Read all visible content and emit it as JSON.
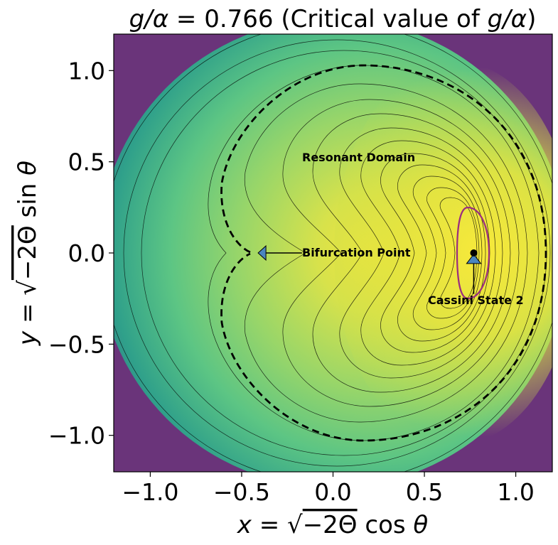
{
  "chart_data": {
    "type": "contour",
    "title": "g/α = 0.766 (Critical value of g/α)",
    "title_prefix": "g/α = ",
    "title_value": "0.766",
    "title_suffix": " (Critical value of g/α)",
    "xlabel": "x = √−2Θ cos θ",
    "ylabel": "y = √−2Θ sin θ",
    "xlim": [
      -1.2,
      1.2
    ],
    "ylim": [
      -1.2,
      1.2
    ],
    "xticks": [
      -1.0,
      -0.5,
      0.0,
      0.5,
      1.0
    ],
    "yticks": [
      -1.0,
      -0.5,
      0.0,
      0.5,
      1.0
    ],
    "xtick_labels": [
      "−1.0",
      "−0.5",
      "0.0",
      "0.5",
      "1.0"
    ],
    "ytick_labels": [
      "−1.0",
      "−0.5",
      "0.0",
      "0.5",
      "1.0"
    ],
    "colormap": "viridis",
    "colors": {
      "background_outer": "#6a347a",
      "purple": "#48196b",
      "teal": "#3fae86",
      "green": "#7fd07c",
      "yellow": "#f2e83f",
      "separatrix": "#000000",
      "cassini_contour": "#9b2d7f",
      "marker_fill": "#4a86c0"
    },
    "separatrix": {
      "style": "dashed",
      "right_extent_x": 1.13,
      "top_extent_y": 1.03,
      "bottom_extent_y": -1.03,
      "cusp_x": -0.47,
      "cusp_y": 0.0
    },
    "points": [
      {
        "name": "Cassini State 2",
        "x": 0.77,
        "y": 0.0
      }
    ],
    "annotations": [
      {
        "text": "Resonant Domain",
        "x": -0.17,
        "y": 0.5
      },
      {
        "text": "Bifurcation Point",
        "x": -0.17,
        "y": 0.0,
        "arrow_to": [
          -0.41,
          0.0
        ]
      },
      {
        "text": "Cassini State 2",
        "x": 0.52,
        "y": -0.26,
        "arrow_to": [
          0.77,
          -0.05
        ]
      }
    ]
  }
}
